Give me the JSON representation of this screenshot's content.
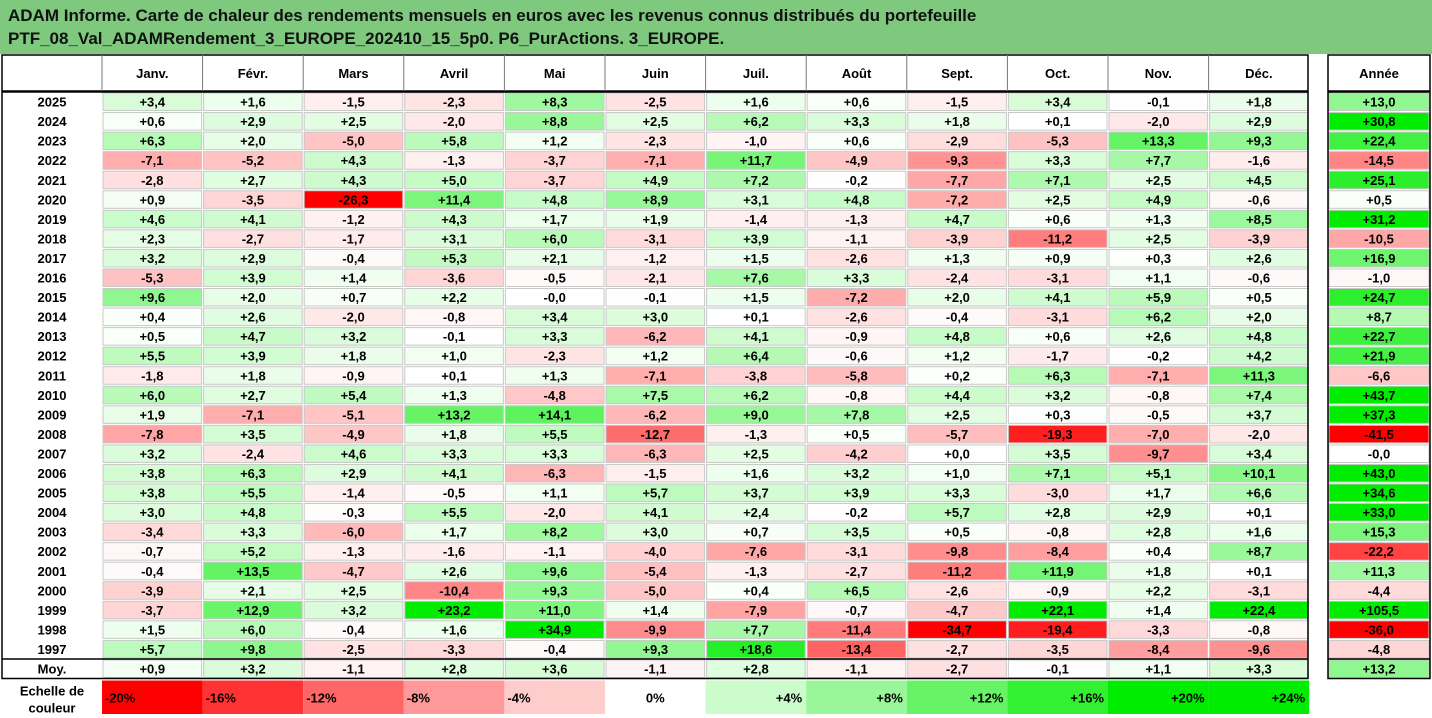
{
  "title": {
    "line1": "ADAM Informe. Carte de chaleur des rendements mensuels en euros avec les revenus connus distribués du portefeuille",
    "line2": "PTF_08_Val_ADAMRendement_3_EUROPE_202410_15_5p0. P6_PurActions. 3_EUROPE."
  },
  "chart_data": {
    "type": "heatmap",
    "columns": [
      "Janv.",
      "Févr.",
      "Mars",
      "Avril",
      "Mai",
      "Juin",
      "Juil.",
      "Août",
      "Sept.",
      "Oct.",
      "Nov.",
      "Déc."
    ],
    "year_column": "Année",
    "rows": [
      {
        "label": "2025",
        "values": [
          3.4,
          1.6,
          -1.5,
          -2.3,
          8.3,
          -2.5,
          1.6,
          0.6,
          -1.5,
          3.4,
          -0.1,
          1.8
        ],
        "year": 13.0
      },
      {
        "label": "2024",
        "values": [
          0.6,
          2.9,
          2.5,
          -2.0,
          8.8,
          2.5,
          6.2,
          3.3,
          1.8,
          0.1,
          -2.0,
          2.9
        ],
        "year": 30.8
      },
      {
        "label": "2023",
        "values": [
          6.3,
          2.0,
          -5.0,
          5.8,
          1.2,
          -2.3,
          -1.0,
          0.6,
          -2.9,
          -5.3,
          13.3,
          9.3
        ],
        "year": 22.4
      },
      {
        "label": "2022",
        "values": [
          -7.1,
          -5.2,
          4.3,
          -1.3,
          -3.7,
          -7.1,
          11.7,
          -4.9,
          -9.3,
          3.3,
          7.7,
          -1.6
        ],
        "year": -14.5
      },
      {
        "label": "2021",
        "values": [
          -2.8,
          2.7,
          4.3,
          5.0,
          -3.7,
          4.9,
          7.2,
          -0.2,
          -7.7,
          7.1,
          2.5,
          4.5
        ],
        "year": 25.1
      },
      {
        "label": "2020",
        "values": [
          0.9,
          -3.5,
          -26.3,
          11.4,
          4.8,
          8.9,
          3.1,
          4.8,
          -7.2,
          2.5,
          4.9,
          -0.6
        ],
        "year": 0.5
      },
      {
        "label": "2019",
        "values": [
          4.6,
          4.1,
          -1.2,
          4.3,
          1.7,
          1.9,
          -1.4,
          -1.3,
          4.7,
          0.6,
          1.3,
          8.5
        ],
        "year": 31.2
      },
      {
        "label": "2018",
        "values": [
          2.3,
          -2.7,
          -1.7,
          3.1,
          6.0,
          -3.1,
          3.9,
          -1.1,
          -3.9,
          -11.2,
          2.5,
          -3.9
        ],
        "year": -10.5
      },
      {
        "label": "2017",
        "values": [
          3.2,
          2.9,
          -0.4,
          5.3,
          2.1,
          -1.2,
          1.5,
          -2.6,
          1.3,
          0.9,
          0.3,
          2.6
        ],
        "year": 16.9
      },
      {
        "label": "2016",
        "values": [
          -5.3,
          3.9,
          1.4,
          -3.6,
          -0.5,
          -2.1,
          7.6,
          3.3,
          -2.4,
          -3.1,
          1.1,
          -0.6
        ],
        "year": -1.0
      },
      {
        "label": "2015",
        "values": [
          9.6,
          2.0,
          0.7,
          2.2,
          -0.0,
          -0.1,
          1.5,
          -7.2,
          2.0,
          4.1,
          5.9,
          0.5
        ],
        "year": 24.7
      },
      {
        "label": "2014",
        "values": [
          0.4,
          2.6,
          -2.0,
          -0.8,
          3.4,
          3.0,
          0.1,
          -2.6,
          -0.4,
          -3.1,
          6.2,
          2.0
        ],
        "year": 8.7
      },
      {
        "label": "2013",
        "values": [
          0.5,
          4.7,
          3.2,
          -0.1,
          3.3,
          -6.2,
          4.1,
          -0.9,
          4.8,
          0.6,
          2.6,
          4.8
        ],
        "year": 22.7
      },
      {
        "label": "2012",
        "values": [
          5.5,
          3.9,
          1.8,
          1.0,
          -2.3,
          1.2,
          6.4,
          -0.6,
          1.2,
          -1.7,
          -0.2,
          4.2
        ],
        "year": 21.9
      },
      {
        "label": "2011",
        "values": [
          -1.8,
          1.8,
          -0.9,
          0.1,
          1.3,
          -7.1,
          -3.8,
          -5.8,
          0.2,
          6.3,
          -7.1,
          11.3
        ],
        "year": -6.6
      },
      {
        "label": "2010",
        "values": [
          6.0,
          2.7,
          5.4,
          1.3,
          -4.8,
          7.5,
          6.2,
          -0.8,
          4.4,
          3.2,
          -0.8,
          7.4
        ],
        "year": 43.7
      },
      {
        "label": "2009",
        "values": [
          1.9,
          -7.1,
          -5.1,
          13.2,
          14.1,
          -6.2,
          9.0,
          7.8,
          2.5,
          0.3,
          -0.5,
          3.7
        ],
        "year": 37.3
      },
      {
        "label": "2008",
        "values": [
          -7.8,
          3.5,
          -4.9,
          1.8,
          5.5,
          -12.7,
          -1.3,
          0.5,
          -5.7,
          -19.3,
          -7.0,
          -2.0
        ],
        "year": -41.5
      },
      {
        "label": "2007",
        "values": [
          3.2,
          -2.4,
          4.6,
          3.3,
          3.3,
          -6.3,
          2.5,
          -4.2,
          0.0,
          3.5,
          -9.7,
          3.4
        ],
        "year": -0.0
      },
      {
        "label": "2006",
        "values": [
          3.8,
          6.3,
          2.9,
          4.1,
          -6.3,
          -1.5,
          1.6,
          3.2,
          1.0,
          7.1,
          5.1,
          10.1
        ],
        "year": 43.0
      },
      {
        "label": "2005",
        "values": [
          3.8,
          5.5,
          -1.4,
          -0.5,
          1.1,
          5.7,
          3.7,
          3.9,
          3.3,
          -3.0,
          1.7,
          6.6
        ],
        "year": 34.6
      },
      {
        "label": "2004",
        "values": [
          3.0,
          4.8,
          -0.3,
          5.5,
          -2.0,
          4.1,
          2.4,
          -0.2,
          5.7,
          2.8,
          2.9,
          0.1
        ],
        "year": 33.0
      },
      {
        "label": "2003",
        "values": [
          -3.4,
          3.3,
          -6.0,
          1.7,
          8.2,
          3.0,
          0.7,
          3.5,
          0.5,
          -0.8,
          2.8,
          1.6
        ],
        "year": 15.3
      },
      {
        "label": "2002",
        "values": [
          -0.7,
          5.2,
          -1.3,
          -1.6,
          -1.1,
          -4.0,
          -7.6,
          -3.1,
          -9.8,
          -8.4,
          0.4,
          8.7
        ],
        "year": -22.2
      },
      {
        "label": "2001",
        "values": [
          -0.4,
          13.5,
          -4.7,
          2.6,
          9.6,
          -5.4,
          -1.3,
          -2.7,
          -11.2,
          11.9,
          1.8,
          0.1
        ],
        "year": 11.3
      },
      {
        "label": "2000",
        "values": [
          -3.9,
          2.1,
          2.5,
          -10.4,
          9.3,
          -5.0,
          0.4,
          6.5,
          -2.6,
          -0.9,
          2.2,
          -3.1
        ],
        "year": -4.4
      },
      {
        "label": "1999",
        "values": [
          -3.7,
          12.9,
          3.2,
          23.2,
          11.0,
          1.4,
          -7.9,
          -0.7,
          -4.7,
          22.1,
          1.4,
          22.4
        ],
        "year": 105.5
      },
      {
        "label": "1998",
        "values": [
          1.5,
          6.0,
          -0.4,
          1.6,
          34.9,
          -9.9,
          7.7,
          -11.4,
          -34.7,
          -19.4,
          -3.3,
          -0.8
        ],
        "year": -36.0
      },
      {
        "label": "1997",
        "values": [
          5.7,
          9.8,
          -2.5,
          -3.3,
          -0.4,
          9.3,
          18.6,
          -13.4,
          -2.7,
          -3.5,
          -8.4,
          -9.6
        ],
        "year": -4.8
      }
    ],
    "average": {
      "label": "Moy.",
      "values": [
        0.9,
        3.2,
        -1.1,
        2.8,
        3.6,
        -1.1,
        2.8,
        -1.1,
        -2.7,
        -0.1,
        1.1,
        3.3
      ],
      "year": 13.2
    },
    "legend": {
      "label": "Echelle de couleur",
      "items": [
        "-20%",
        "-16%",
        "-12%",
        "-8%",
        "-4%",
        "0%",
        "+4%",
        "+8%",
        "+12%",
        "+16%",
        "+20%",
        "+24%"
      ],
      "stops": [
        -20,
        -16,
        -12,
        -8,
        -4,
        0,
        4,
        8,
        12,
        16,
        20,
        24
      ]
    },
    "colors": {
      "negative_max": "#ff0000",
      "positive_max": "#00ee00",
      "neutral": "#ffffff",
      "title_bg": "#7fc97f"
    }
  }
}
